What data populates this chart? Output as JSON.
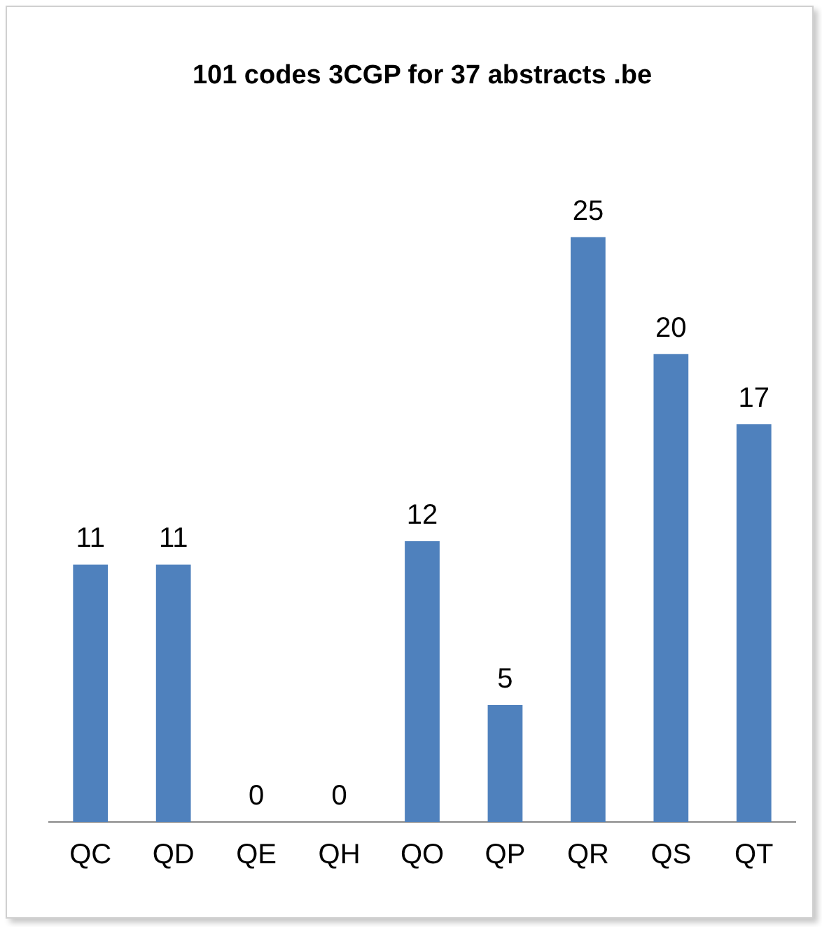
{
  "chart_data": {
    "type": "bar",
    "title": "101 codes 3CGP for 37 abstracts .be",
    "categories": [
      "QC",
      "QD",
      "QE",
      "QH",
      "QO",
      "QP",
      "QR",
      "QS",
      "QT"
    ],
    "values": [
      11,
      11,
      0,
      0,
      12,
      5,
      25,
      20,
      17
    ],
    "color": "#4f81bd",
    "tick_labels": "x",
    "grid": false,
    "legend": false,
    "data_labels": true
  }
}
